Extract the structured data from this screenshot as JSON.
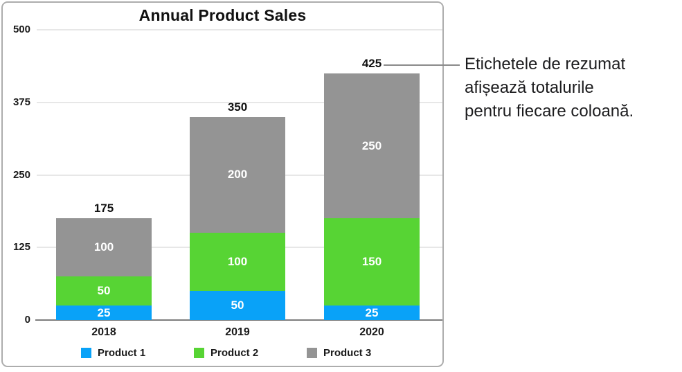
{
  "chart_data": {
    "type": "bar",
    "variant": "stacked-column",
    "title": "Annual Product Sales",
    "categories": [
      "2018",
      "2019",
      "2020"
    ],
    "series": [
      {
        "name": "Product 1",
        "color": "#09a2f8",
        "values": [
          25,
          50,
          25
        ]
      },
      {
        "name": "Product 2",
        "color": "#57d434",
        "values": [
          50,
          100,
          150
        ]
      },
      {
        "name": "Product 3",
        "color": "#949494",
        "values": [
          100,
          200,
          250
        ]
      }
    ],
    "totals": [
      175,
      350,
      425
    ],
    "y_ticks": [
      0,
      125,
      250,
      375,
      500
    ],
    "ylim": [
      0,
      500
    ],
    "xlabel": "",
    "ylabel": "",
    "grid": true,
    "legend_position": "bottom",
    "axis_color": "#7d7d7d",
    "gridline_color": "#e7e7e7"
  },
  "callout": {
    "lines": [
      "Etichetele de rezumat",
      "afișează totalurile",
      "pentru fiecare coloană."
    ]
  }
}
